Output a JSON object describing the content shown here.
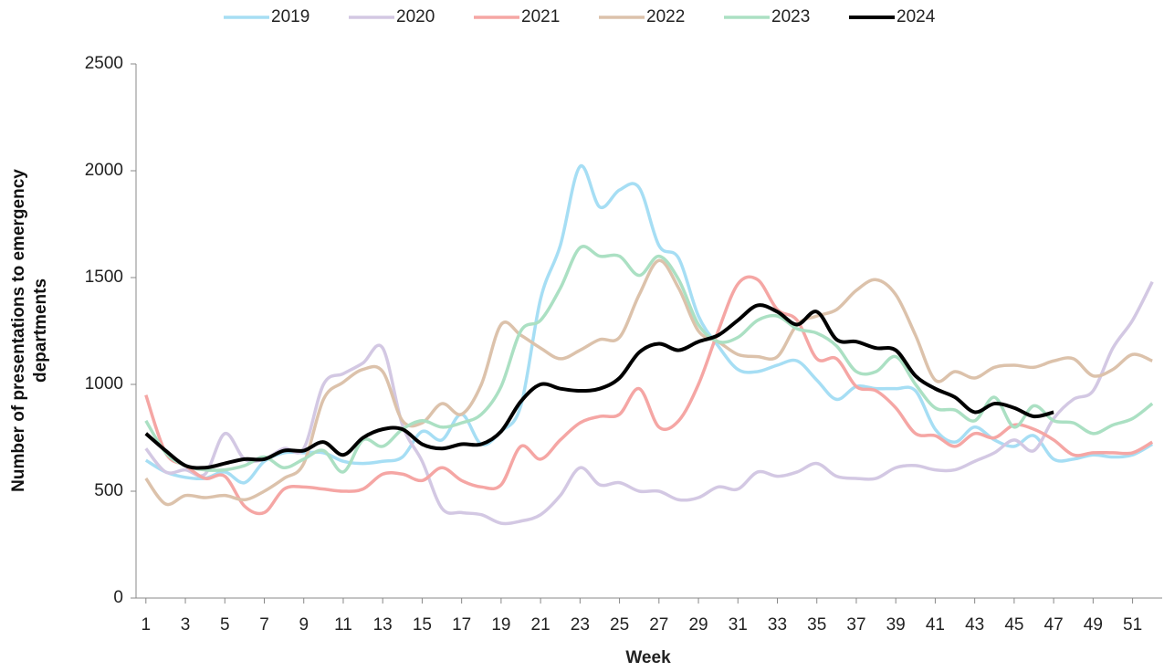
{
  "chart_data": {
    "type": "line",
    "x_label": "Week",
    "y_label": "Number of presentations to emergency departments",
    "x": [
      1,
      2,
      3,
      4,
      5,
      6,
      7,
      8,
      9,
      10,
      11,
      12,
      13,
      14,
      15,
      16,
      17,
      18,
      19,
      20,
      21,
      22,
      23,
      24,
      25,
      26,
      27,
      28,
      29,
      30,
      31,
      32,
      33,
      34,
      35,
      36,
      37,
      38,
      39,
      40,
      41,
      42,
      43,
      44,
      45,
      46,
      47,
      48,
      49,
      50,
      51,
      52
    ],
    "xlim": [
      0.5,
      52.5
    ],
    "xticks": [
      1,
      3,
      5,
      7,
      9,
      11,
      13,
      15,
      17,
      19,
      21,
      23,
      25,
      27,
      29,
      31,
      33,
      35,
      37,
      39,
      41,
      43,
      45,
      47,
      49,
      51
    ],
    "ylim": [
      0,
      2500
    ],
    "yticks": [
      0,
      500,
      1000,
      1500,
      2000,
      2500
    ],
    "legend": "top",
    "series": [
      {
        "name": "2019",
        "color": "#a6def4",
        "values": [
          645,
          590,
          565,
          560,
          590,
          540,
          640,
          680,
          680,
          680,
          640,
          630,
          640,
          660,
          780,
          740,
          860,
          720,
          780,
          900,
          1400,
          1650,
          2020,
          1830,
          1910,
          1920,
          1650,
          1590,
          1320,
          1180,
          1070,
          1060,
          1090,
          1110,
          1020,
          930,
          990,
          980,
          980,
          970,
          790,
          730,
          800,
          740,
          710,
          760,
          650,
          650,
          670,
          660,
          670,
          720
        ]
      },
      {
        "name": "2020",
        "color": "#d3c8e3",
        "values": [
          700,
          590,
          600,
          580,
          770,
          650,
          650,
          700,
          700,
          1000,
          1050,
          1100,
          1170,
          810,
          640,
          420,
          400,
          390,
          350,
          360,
          390,
          480,
          610,
          530,
          540,
          500,
          500,
          460,
          470,
          520,
          510,
          590,
          570,
          590,
          630,
          570,
          560,
          560,
          610,
          620,
          600,
          600,
          640,
          680,
          740,
          690,
          840,
          930,
          970,
          1170,
          1300,
          1480
        ]
      },
      {
        "name": "2021",
        "color": "#f5a6a4",
        "values": [
          950,
          680,
          620,
          560,
          570,
          430,
          400,
          510,
          520,
          510,
          500,
          510,
          580,
          580,
          550,
          610,
          550,
          520,
          530,
          710,
          650,
          740,
          820,
          850,
          860,
          980,
          800,
          830,
          1000,
          1250,
          1470,
          1490,
          1350,
          1300,
          1120,
          1120,
          990,
          970,
          890,
          770,
          760,
          710,
          770,
          750,
          810,
          790,
          740,
          670,
          680,
          680,
          680,
          730
        ]
      },
      {
        "name": "2022",
        "color": "#dcc2ab",
        "values": [
          560,
          440,
          480,
          470,
          480,
          460,
          500,
          560,
          630,
          930,
          1010,
          1070,
          1060,
          830,
          820,
          910,
          860,
          1000,
          1280,
          1230,
          1170,
          1120,
          1160,
          1210,
          1220,
          1420,
          1580,
          1450,
          1250,
          1200,
          1140,
          1130,
          1130,
          1280,
          1320,
          1350,
          1440,
          1490,
          1420,
          1230,
          1020,
          1060,
          1030,
          1080,
          1090,
          1080,
          1110,
          1120,
          1040,
          1070,
          1140,
          1110
        ]
      },
      {
        "name": "2023",
        "color": "#abe0c3",
        "values": [
          830,
          680,
          620,
          600,
          600,
          620,
          660,
          610,
          650,
          690,
          590,
          740,
          710,
          790,
          830,
          800,
          820,
          860,
          990,
          1250,
          1300,
          1450,
          1640,
          1600,
          1600,
          1510,
          1600,
          1490,
          1280,
          1200,
          1220,
          1300,
          1320,
          1260,
          1240,
          1180,
          1060,
          1060,
          1130,
          1000,
          890,
          880,
          830,
          940,
          800,
          900,
          830,
          820,
          770,
          810,
          840,
          910
        ]
      },
      {
        "name": "2024",
        "color": "#000000",
        "values": [
          770,
          690,
          620,
          610,
          630,
          650,
          650,
          690,
          690,
          730,
          670,
          750,
          790,
          790,
          720,
          700,
          720,
          720,
          780,
          920,
          1000,
          980,
          970,
          980,
          1030,
          1150,
          1190,
          1160,
          1200,
          1230,
          1300,
          1370,
          1340,
          1280,
          1340,
          1210,
          1200,
          1170,
          1160,
          1040,
          980,
          940,
          870,
          910,
          890,
          850,
          870,
          null,
          null,
          null,
          null,
          null
        ]
      }
    ]
  }
}
